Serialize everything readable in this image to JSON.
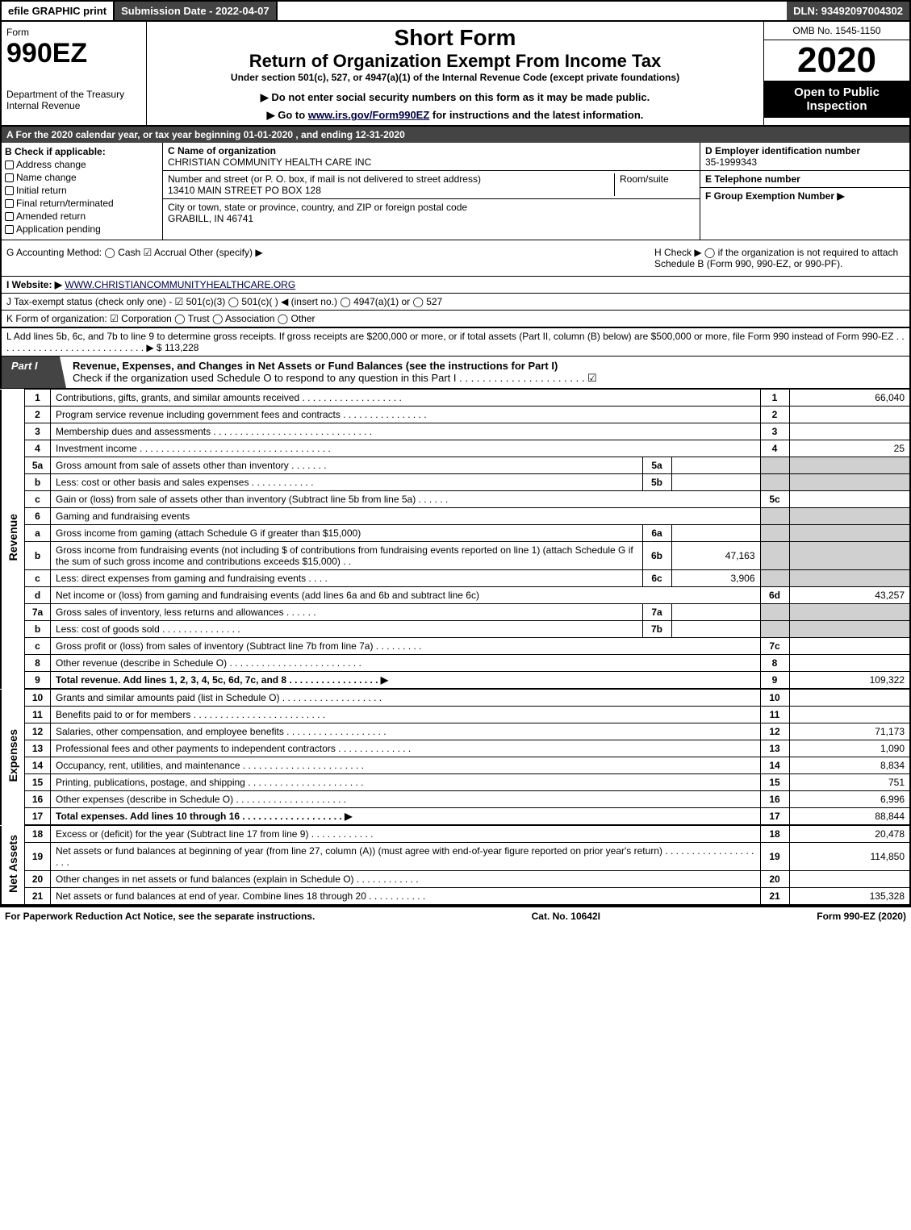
{
  "topbar": {
    "efile": "efile GRAPHIC print",
    "subdate": "Submission Date - 2022-04-07",
    "dln": "DLN: 93492097004302"
  },
  "header": {
    "form_word": "Form",
    "form_num": "990EZ",
    "dept": "Department of the Treasury\nInternal Revenue",
    "short": "Short Form",
    "return": "Return of Organization Exempt From Income Tax",
    "under": "Under section 501(c), 527, or 4947(a)(1) of the Internal Revenue Code (except private foundations)",
    "note": "▶ Do not enter social security numbers on this form as it may be made public.",
    "goto_pre": "▶ Go to ",
    "goto_link": "www.irs.gov/Form990EZ",
    "goto_post": " for instructions and the latest information.",
    "omb": "OMB No. 1545-1150",
    "year": "2020",
    "openpub": "Open to Public Inspection"
  },
  "rowA": "A For the 2020 calendar year, or tax year beginning 01-01-2020 , and ending 12-31-2020",
  "B": {
    "label": "B  Check if applicable:",
    "opts": [
      "Address change",
      "Name change",
      "Initial return",
      "Final return/terminated",
      "Amended return",
      "Application pending"
    ]
  },
  "C": {
    "label": "C Name of organization",
    "name": "CHRISTIAN COMMUNITY HEALTH CARE INC",
    "addr_label": "Number and street (or P. O. box, if mail is not delivered to street address)",
    "room_label": "Room/suite",
    "addr": "13410 MAIN STREET PO BOX 128",
    "city_label": "City or town, state or province, country, and ZIP or foreign postal code",
    "city": "GRABILL, IN  46741"
  },
  "D": {
    "label": "D Employer identification number",
    "ein": "35-1999343"
  },
  "E": {
    "label": "E Telephone number",
    "val": ""
  },
  "F": {
    "label": "F Group Exemption Number   ▶",
    "val": ""
  },
  "G": "G Accounting Method:   ◯ Cash   ☑ Accrual   Other (specify) ▶",
  "H": "H   Check ▶  ◯  if the organization is not required to attach Schedule B (Form 990, 990-EZ, or 990-PF).",
  "I": {
    "label": "I Website: ▶",
    "url": "WWW.CHRISTIANCOMMUNITYHEALTHCARE.ORG"
  },
  "J": "J Tax-exempt status (check only one) -  ☑ 501(c)(3)  ◯ 501(c)(  ) ◀ (insert no.)  ◯ 4947(a)(1) or  ◯ 527",
  "K": "K Form of organization:   ☑ Corporation   ◯ Trust   ◯ Association   ◯ Other",
  "L": {
    "text": "L Add lines 5b, 6c, and 7b to line 9 to determine gross receipts. If gross receipts are $200,000 or more, or if total assets (Part II, column (B) below) are $500,000 or more, file Form 990 instead of Form 990-EZ  .  .  .  .  .  .  .  .  .  .  .  .  .  .  .  .  .  .  .  .  .  .  .  .  .  .  .  .  ▶ $ ",
    "amount": "113,228"
  },
  "partI": {
    "tab": "Part I",
    "title": "Revenue, Expenses, and Changes in Net Assets or Fund Balances (see the instructions for Part I)",
    "sub": "Check if the organization used Schedule O to respond to any question in this Part I  .  .  .  .  .  .  .  .  .  .  .  .  .  .  .  .  .  .  .  .  .  .  ☑"
  },
  "sides": {
    "rev": "Revenue",
    "exp": "Expenses",
    "net": "Net Assets"
  },
  "rows": [
    {
      "n": "1",
      "d": "Contributions, gifts, grants, and similar amounts received  .  .  .  .  .  .  .  .  .  .  .  .  .  .  .  .  .  .  .",
      "ln": "1",
      "v": "66,040"
    },
    {
      "n": "2",
      "d": "Program service revenue including government fees and contracts  .  .  .  .  .  .  .  .  .  .  .  .  .  .  .  .",
      "ln": "2",
      "v": ""
    },
    {
      "n": "3",
      "d": "Membership dues and assessments  .  .  .  .  .  .  .  .  .  .  .  .  .  .  .  .  .  .  .  .  .  .  .  .  .  .  .  .  .  .",
      "ln": "3",
      "v": ""
    },
    {
      "n": "4",
      "d": "Investment income  .  .  .  .  .  .  .  .  .  .  .  .  .  .  .  .  .  .  .  .  .  .  .  .  .  .  .  .  .  .  .  .  .  .  .  .",
      "ln": "4",
      "v": "25"
    },
    {
      "n": "5a",
      "d": "Gross amount from sale of assets other than inventory  .  .  .  .  .  .  .",
      "sub": "5a",
      "sv": "",
      "shade": true
    },
    {
      "n": "b",
      "d": "Less: cost or other basis and sales expenses  .  .  .  .  .  .  .  .  .  .  .  .",
      "sub": "5b",
      "sv": "",
      "shade": true
    },
    {
      "n": "c",
      "d": "Gain or (loss) from sale of assets other than inventory (Subtract line 5b from line 5a)  .  .  .  .  .  .",
      "ln": "5c",
      "v": ""
    },
    {
      "n": "6",
      "d": "Gaming and fundraising events",
      "shade": true,
      "nosub": true
    },
    {
      "n": "a",
      "d": "Gross income from gaming (attach Schedule G if greater than $15,000)",
      "sub": "6a",
      "sv": "",
      "shade": true
    },
    {
      "n": "b",
      "d": "Gross income from fundraising events (not including $                        of contributions from fundraising events reported on line 1) (attach Schedule G if the sum of such gross income and contributions exceeds $15,000)     .    .",
      "sub": "6b",
      "sv": "47,163",
      "shade": true
    },
    {
      "n": "c",
      "d": "Less: direct expenses from gaming and fundraising events      .  .  .  .",
      "sub": "6c",
      "sv": "3,906",
      "shade": true
    },
    {
      "n": "d",
      "d": "Net income or (loss) from gaming and fundraising events (add lines 6a and 6b and subtract line 6c)",
      "ln": "6d",
      "v": "43,257"
    },
    {
      "n": "7a",
      "d": "Gross sales of inventory, less returns and allowances  .  .  .  .  .  .",
      "sub": "7a",
      "sv": "",
      "shade": true
    },
    {
      "n": "b",
      "d": "Less: cost of goods sold        .  .  .  .  .  .  .  .  .  .  .  .  .  .  .",
      "sub": "7b",
      "sv": "",
      "shade": true
    },
    {
      "n": "c",
      "d": "Gross profit or (loss) from sales of inventory (Subtract line 7b from line 7a)  .  .  .  .  .  .  .  .  .",
      "ln": "7c",
      "v": ""
    },
    {
      "n": "8",
      "d": "Other revenue (describe in Schedule O)  .  .  .  .  .  .  .  .  .  .  .  .  .  .  .  .  .  .  .  .  .  .  .  .  .",
      "ln": "8",
      "v": ""
    },
    {
      "n": "9",
      "d": "Total revenue. Add lines 1, 2, 3, 4, 5c, 6d, 7c, and 8  .  .  .  .  .  .  .  .  .  .  .  .  .  .  .  .  .  ▶",
      "ln": "9",
      "v": "109,322",
      "bold": true
    }
  ],
  "exp": [
    {
      "n": "10",
      "d": "Grants and similar amounts paid (list in Schedule O)  .  .  .  .  .  .  .  .  .  .  .  .  .  .  .  .  .  .  .",
      "ln": "10",
      "v": ""
    },
    {
      "n": "11",
      "d": "Benefits paid to or for members      .  .  .  .  .  .  .  .  .  .  .  .  .  .  .  .  .  .  .  .  .  .  .  .  .",
      "ln": "11",
      "v": ""
    },
    {
      "n": "12",
      "d": "Salaries, other compensation, and employee benefits  .  .  .  .  .  .  .  .  .  .  .  .  .  .  .  .  .  .  .",
      "ln": "12",
      "v": "71,173"
    },
    {
      "n": "13",
      "d": "Professional fees and other payments to independent contractors  .  .  .  .  .  .  .  .  .  .  .  .  .  .",
      "ln": "13",
      "v": "1,090"
    },
    {
      "n": "14",
      "d": "Occupancy, rent, utilities, and maintenance  .  .  .  .  .  .  .  .  .  .  .  .  .  .  .  .  .  .  .  .  .  .  .",
      "ln": "14",
      "v": "8,834"
    },
    {
      "n": "15",
      "d": "Printing, publications, postage, and shipping  .  .  .  .  .  .  .  .  .  .  .  .  .  .  .  .  .  .  .  .  .  .",
      "ln": "15",
      "v": "751"
    },
    {
      "n": "16",
      "d": "Other expenses (describe in Schedule O)      .  .  .  .  .  .  .  .  .  .  .  .  .  .  .  .  .  .  .  .  .",
      "ln": "16",
      "v": "6,996"
    },
    {
      "n": "17",
      "d": "Total expenses. Add lines 10 through 16      .  .  .  .  .  .  .  .  .  .  .  .  .  .  .  .  .  .  .  ▶",
      "ln": "17",
      "v": "88,844",
      "bold": true
    }
  ],
  "net": [
    {
      "n": "18",
      "d": "Excess or (deficit) for the year (Subtract line 17 from line 9)        .  .  .  .  .  .  .  .  .  .  .  .",
      "ln": "18",
      "v": "20,478"
    },
    {
      "n": "19",
      "d": "Net assets or fund balances at beginning of year (from line 27, column (A)) (must agree with end-of-year figure reported on prior year's return)  .  .  .  .  .  .  .  .  .  .  .  .  .  .  .  .  .  .  .  .",
      "ln": "19",
      "v": "114,850"
    },
    {
      "n": "20",
      "d": "Other changes in net assets or fund balances (explain in Schedule O)  .  .  .  .  .  .  .  .  .  .  .  .",
      "ln": "20",
      "v": ""
    },
    {
      "n": "21",
      "d": "Net assets or fund balances at end of year. Combine lines 18 through 20  .  .  .  .  .  .  .  .  .  .  .",
      "ln": "21",
      "v": "135,328"
    }
  ],
  "footer": {
    "left": "For Paperwork Reduction Act Notice, see the separate instructions.",
    "mid": "Cat. No. 10642I",
    "right": "Form 990-EZ (2020)"
  }
}
